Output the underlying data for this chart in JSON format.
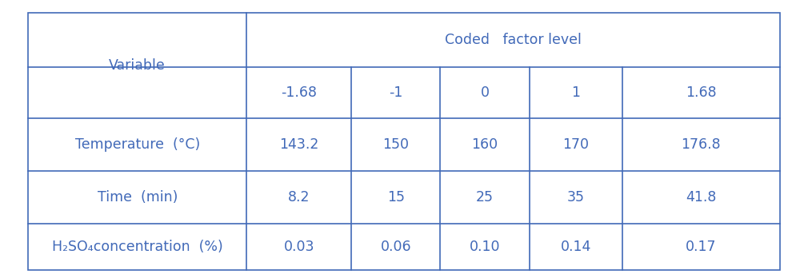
{
  "header_main": "Coded   factor level",
  "header_col1": "Variable",
  "coded_levels": [
    "-1.68",
    "-1",
    "0",
    "1",
    "1.68"
  ],
  "rows": [
    {
      "variable": "Temperature  (°C)",
      "values": [
        "143.2",
        "150",
        "160",
        "170",
        "176.8"
      ]
    },
    {
      "variable": "Time  (min)",
      "values": [
        "8.2",
        "15",
        "25",
        "35",
        "41.8"
      ]
    },
    {
      "variable": "H₂SO₄concentration  (%)",
      "values": [
        "0.03",
        "0.06",
        "0.10",
        "0.14",
        "0.17"
      ]
    }
  ],
  "text_color": "#4169b8",
  "border_color": "#4169b8",
  "bg_color": "#ffffff",
  "font_size": 12.5,
  "col_boundaries": [
    0.035,
    0.305,
    0.435,
    0.545,
    0.655,
    0.77,
    0.965
  ],
  "row_boundaries": [
    0.955,
    0.76,
    0.575,
    0.385,
    0.195,
    0.03
  ],
  "lw": 1.2
}
